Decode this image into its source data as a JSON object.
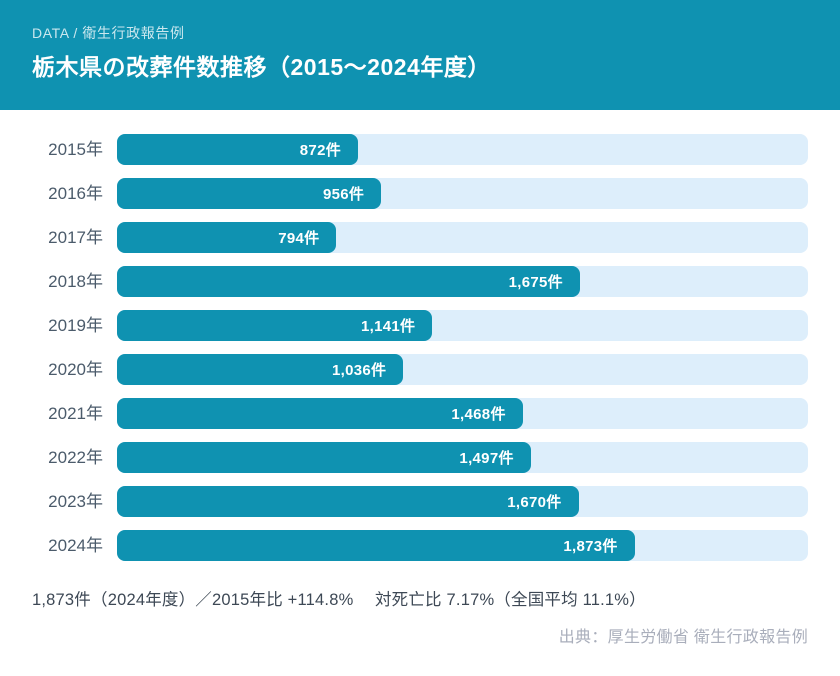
{
  "header": {
    "eyebrow": "DATA / 衛生行政報告例",
    "title": "栃木県の改葬件数推移（2015〜2024年度）"
  },
  "colors": {
    "header_bg": "#0f92b1",
    "bar": "#0f92b1",
    "track": "#ddeefb"
  },
  "chart_data": {
    "type": "bar",
    "orientation": "horizontal",
    "title": "栃木県の改葬件数推移（2015〜2024年度）",
    "categories": [
      "2015年",
      "2016年",
      "2017年",
      "2018年",
      "2019年",
      "2020年",
      "2021年",
      "2022年",
      "2023年",
      "2024年"
    ],
    "values": [
      872,
      956,
      794,
      1675,
      1141,
      1036,
      1468,
      1497,
      1670,
      1873
    ],
    "value_labels": [
      "872件",
      "956件",
      "794件",
      "1,675件",
      "1,141件",
      "1,036件",
      "1,468件",
      "1,497件",
      "1,670件",
      "1,873件"
    ],
    "unit": "件",
    "xlim": [
      0,
      2500
    ],
    "xlabel": "",
    "ylabel": "",
    "grid": false,
    "legend": false,
    "value_label_position": "inside-end"
  },
  "footer": {
    "summary": "1,873件（2024年度）／2015年比 +114.8%　 対死亡比 7.17%（全国平均 11.1%）",
    "source": "出典：厚生労働省 衛生行政報告例"
  }
}
